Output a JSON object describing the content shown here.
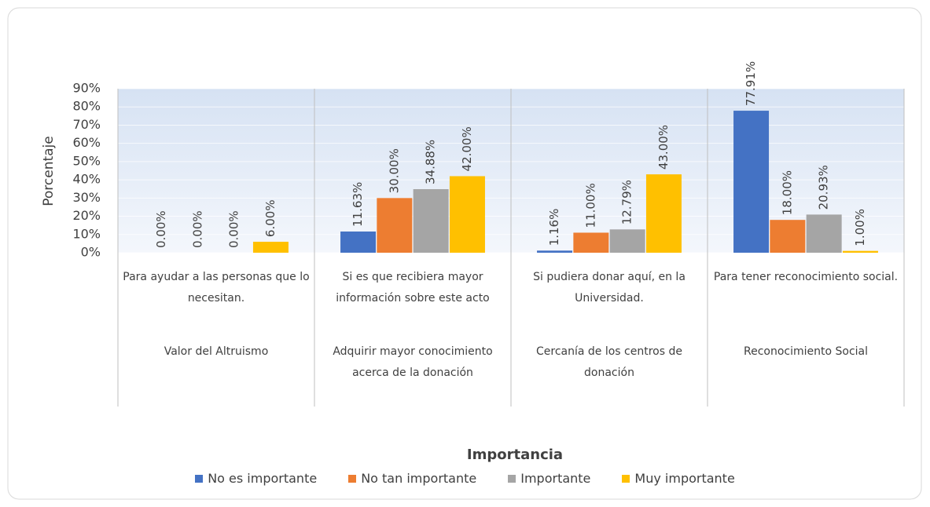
{
  "chart_data": {
    "type": "bar",
    "y_axis_label": "Porcentaje",
    "x_axis_label": "Importancia",
    "categories": [
      "Para ayudar a las personas que lo necesitan.",
      "Si es que recibiera mayor información sobre este acto",
      "Si pudiera donar aquí, en la Universidad.",
      "Para tener reconocimiento social."
    ],
    "groups": [
      "Valor del Altruismo",
      "Adquirir mayor conocimiento acerca de la donación",
      "Cercanía de los centros de donación",
      "Reconocimiento Social"
    ],
    "series": [
      {
        "name": "No es importante",
        "color": "#4472c4",
        "values": [
          0,
          11.63,
          1.16,
          77.91
        ],
        "value_labels": [
          "0.00%",
          "11.63%",
          "1.16%",
          "77.91%"
        ]
      },
      {
        "name": "No tan importante",
        "color": "#ed7d31",
        "values": [
          0,
          30,
          11,
          18
        ],
        "value_labels": [
          "0.00%",
          "30.00%",
          "11.00%",
          "18.00%"
        ]
      },
      {
        "name": "Importante",
        "color": "#a5a5a5",
        "values": [
          0,
          34.88,
          12.79,
          20.93
        ],
        "value_labels": [
          "0.00%",
          "34.88%",
          "12.79%",
          "20.93%"
        ]
      },
      {
        "name": "Muy importante",
        "color": "#ffc000",
        "values": [
          6,
          42,
          43,
          1
        ],
        "value_labels": [
          "6.00%",
          "42.00%",
          "43.00%",
          "1.00%"
        ]
      }
    ],
    "ylim": [
      0,
      90
    ],
    "yticks": [
      {
        "value": 0,
        "label": "0%"
      },
      {
        "value": 10,
        "label": "10%"
      },
      {
        "value": 20,
        "label": "20%"
      },
      {
        "value": 30,
        "label": "30%"
      },
      {
        "value": 40,
        "label": "40%"
      },
      {
        "value": 50,
        "label": "50%"
      },
      {
        "value": 60,
        "label": "60%"
      },
      {
        "value": 70,
        "label": "70%"
      },
      {
        "value": 80,
        "label": "80%"
      },
      {
        "value": 90,
        "label": "90%"
      }
    ],
    "grid": true
  }
}
